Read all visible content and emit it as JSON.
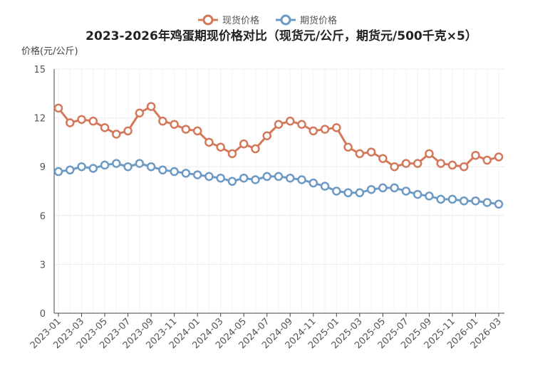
{
  "chart_data": {
    "type": "line",
    "title": "2023-2026年鸡蛋期现价格对比（现货元/公斤，期货元/500千克×5）",
    "ylabel": "价格(元/公斤)",
    "xlabel": "",
    "ylim": [
      0,
      15
    ],
    "yticks": [
      "0",
      "3",
      "6",
      "9",
      "12",
      "15"
    ],
    "legend_position": "top-center",
    "grid": true,
    "x": [
      "2023-01",
      "2023-02",
      "2023-03",
      "2023-04",
      "2023-05",
      "2023-06",
      "2023-07",
      "2023-08",
      "2023-09",
      "2023-10",
      "2023-11",
      "2023-12",
      "2024-01",
      "2024-02",
      "2024-03",
      "2024-04",
      "2024-05",
      "2024-06",
      "2024-07",
      "2024-08",
      "2024-09",
      "2024-10",
      "2024-11",
      "2024-12",
      "2025-01",
      "2025-02",
      "2025-03",
      "2025-04",
      "2025-05",
      "2025-06",
      "2025-07",
      "2025-08",
      "2025-09",
      "2025-10",
      "2025-11",
      "2025-12",
      "2026-01",
      "2026-02",
      "2026-03"
    ],
    "xtick_labels": [
      "2023-01",
      "2023-03",
      "2023-05",
      "2023-07",
      "2023-09",
      "2023-11",
      "2024-01",
      "2024-03",
      "2024-05",
      "2024-07",
      "2024-09",
      "2024-11",
      "2025-01",
      "2025-03",
      "2025-05",
      "2025-07",
      "2025-09",
      "2025-11",
      "2026-01",
      "2026-03"
    ],
    "series": [
      {
        "name": "现货价格",
        "color": "#d4785a",
        "values": [
          12.6,
          11.7,
          11.9,
          11.8,
          11.4,
          11.0,
          11.2,
          12.3,
          12.7,
          11.8,
          11.6,
          11.3,
          11.2,
          10.5,
          10.2,
          9.8,
          10.4,
          10.1,
          10.9,
          11.6,
          11.8,
          11.6,
          11.2,
          11.3,
          11.4,
          10.2,
          9.8,
          9.9,
          9.5,
          9.0,
          9.2,
          9.2,
          9.8,
          9.2,
          9.1,
          9.0,
          9.7,
          9.4,
          9.6
        ]
      },
      {
        "name": "期货价格",
        "color": "#6d9ac4",
        "values": [
          8.7,
          8.8,
          9.0,
          8.9,
          9.1,
          9.2,
          9.0,
          9.2,
          9.0,
          8.8,
          8.7,
          8.6,
          8.5,
          8.4,
          8.3,
          8.1,
          8.3,
          8.2,
          8.4,
          8.4,
          8.3,
          8.2,
          8.0,
          7.8,
          7.5,
          7.4,
          7.4,
          7.6,
          7.7,
          7.7,
          7.5,
          7.3,
          7.2,
          7.0,
          7.0,
          6.9,
          6.9,
          6.8,
          6.7
        ]
      }
    ]
  }
}
